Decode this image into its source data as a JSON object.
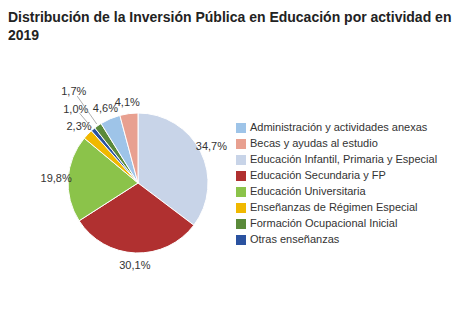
{
  "chart_data": {
    "type": "pie",
    "title": "Distribución de la Inversión Pública en Educación por actividad en 2019",
    "categories": [
      "Educación Infantil, Primaria y Especial",
      "Educación Secundaria y FP",
      "Educación Universitaria",
      "Enseñanzas de Régimen Especial",
      "Otras enseñanzas",
      "Formación Ocupacional Inicial",
      "Administración y actividades anexas",
      "Becas y ayudas al estudio"
    ],
    "values": [
      34.7,
      30.1,
      19.8,
      2.3,
      1.0,
      1.7,
      4.6,
      4.1
    ],
    "value_labels": [
      "34,7%",
      "30,1%",
      "19,8%",
      "2,3%",
      "1,0%",
      "1,7%",
      "4,6%",
      "4,1%"
    ],
    "colors": [
      "#c8d4e8",
      "#b03030",
      "#8bc34a",
      "#f0b800",
      "#2a52a0",
      "#5a8a3a",
      "#9ec4e8",
      "#e8a090"
    ],
    "legend": "right",
    "data_labels": true
  }
}
